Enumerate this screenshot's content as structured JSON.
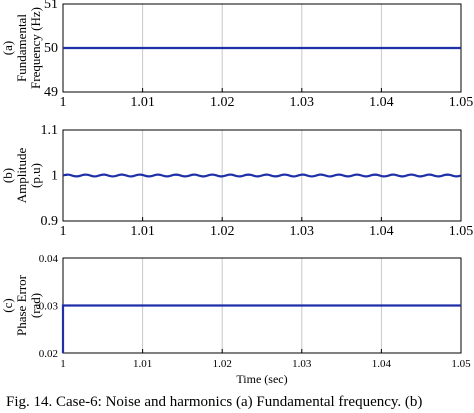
{
  "chart_data": [
    {
      "type": "line",
      "panel": "(a)",
      "ylabel_lines": [
        "(a)",
        "Fundamental",
        "Frequency (Hz)"
      ],
      "xlabel": "",
      "xlim": [
        1,
        1.05
      ],
      "ylim": [
        49,
        51
      ],
      "xticks": [
        "1",
        "1.01",
        "1.02",
        "1.03",
        "1.04",
        "1.05"
      ],
      "yticks": [
        "49",
        "50",
        "51"
      ],
      "grid": "vertical",
      "color": "#1f2fa8",
      "series": [
        {
          "x": [
            1.0,
            1.05
          ],
          "y": [
            50,
            50
          ]
        }
      ]
    },
    {
      "type": "line",
      "panel": "(b)",
      "ylabel_lines": [
        "(b)",
        "Amplitude",
        "(p.u)"
      ],
      "xlabel": "",
      "xlim": [
        1,
        1.05
      ],
      "ylim": [
        0.9,
        1.1
      ],
      "xticks": [
        "1",
        "1.01",
        "1.02",
        "1.03",
        "1.04",
        "1.05"
      ],
      "yticks": [
        "0.9",
        "1",
        "1.1"
      ],
      "grid": "vertical",
      "color": "#1f2fa8",
      "series": [
        {
          "x": [
            1.0,
            1.05
          ],
          "y": [
            1.0,
            1.0
          ],
          "ripple": 0.002
        }
      ]
    },
    {
      "type": "line",
      "panel": "(c)",
      "ylabel_lines": [
        "(c)",
        "Phase Error",
        "(rad)"
      ],
      "xlabel": "Time (sec)",
      "xlim": [
        1,
        1.05
      ],
      "ylim": [
        0.02,
        0.04
      ],
      "xticks": [
        "1",
        "1.01",
        "1.02",
        "1.03",
        "1.04",
        "1.05"
      ],
      "yticks": [
        "0.02",
        "0.03",
        "0.04"
      ],
      "grid": "vertical",
      "color": "#1f2fa8",
      "series": [
        {
          "x": [
            1.0,
            1.0,
            1.05
          ],
          "y": [
            0.02,
            0.03,
            0.03
          ]
        }
      ]
    }
  ],
  "caption": "Fig. 14. Case-6: Noise and harmonics (a) Fundamental frequency. (b)"
}
